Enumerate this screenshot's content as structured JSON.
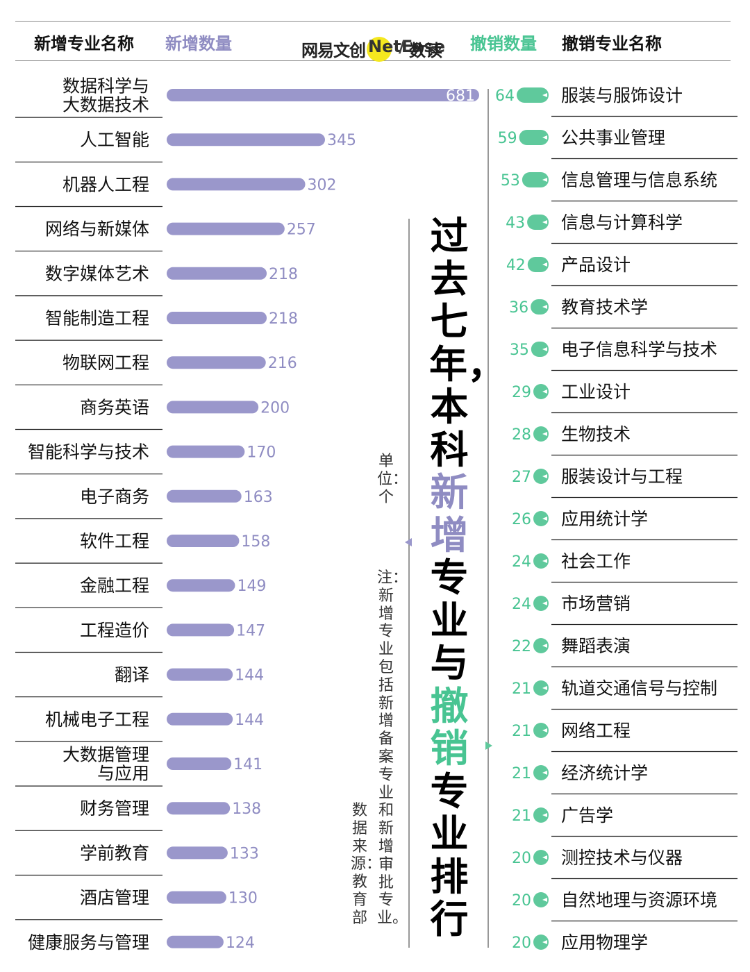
{
  "header": {
    "left_name": "新增专业名称",
    "left_count": "新增数量",
    "right_count": "撤销数量",
    "right_name": "撤销专业名称"
  },
  "brand": {
    "name_a": "网易文创",
    "badge": "NetEase",
    "slash": "/",
    "name_b": "数读"
  },
  "title": {
    "part1": "过去七年，本科",
    "highlight_new": "新增",
    "middle": "专业与",
    "highlight_cut": "撤销",
    "part2": "专业排行"
  },
  "unit": "单位：个",
  "note": "注：新增专业包括新增备案专业和新增审批专业。",
  "source": "数据来源：教育部",
  "colors": {
    "new_bar": "#9a97cb",
    "new_text": "#8f8cc2",
    "cut_bar": "#5fc99c",
    "cut_text": "#48c492",
    "divider": "#777777"
  },
  "chart_data": [
    {
      "type": "bar",
      "orientation": "horizontal",
      "direction": "left-to-right",
      "categories": [
        "数据科学与\n大数据技术",
        "人工智能",
        "机器人工程",
        "网络与新媒体",
        "数字媒体艺术",
        "智能制造工程",
        "物联网工程",
        "商务英语",
        "智能科学与技术",
        "电子商务",
        "软件工程",
        "金融工程",
        "工程造价",
        "翻译",
        "机械电子工程",
        "大数据管理\n与应用",
        "财务管理",
        "学前教育",
        "酒店管理",
        "健康服务与管理"
      ],
      "values": [
        681,
        345,
        302,
        257,
        218,
        218,
        216,
        200,
        170,
        163,
        158,
        149,
        147,
        144,
        144,
        141,
        138,
        133,
        130,
        124
      ],
      "xlim": [
        0,
        681
      ]
    },
    {
      "type": "bar",
      "orientation": "horizontal",
      "direction": "right-to-left",
      "categories": [
        "服装与服饰设计",
        "公共事业管理",
        "信息管理与信息系统",
        "信息与计算科学",
        "产品设计",
        "教育技术学",
        "电子信息科学与技术",
        "工业设计",
        "生物技术",
        "服装设计与工程",
        "应用统计学",
        "社会工作",
        "市场营销",
        "舞蹈表演",
        "轨道交通信号与控制",
        "网络工程",
        "经济统计学",
        "广告学",
        "测控技术与仪器",
        "自然地理与资源环境",
        "应用物理学"
      ],
      "values": [
        64,
        59,
        53,
        43,
        42,
        36,
        35,
        29,
        28,
        27,
        26,
        24,
        24,
        22,
        21,
        21,
        21,
        21,
        20,
        20,
        20
      ],
      "xlim": [
        0,
        64
      ]
    }
  ]
}
